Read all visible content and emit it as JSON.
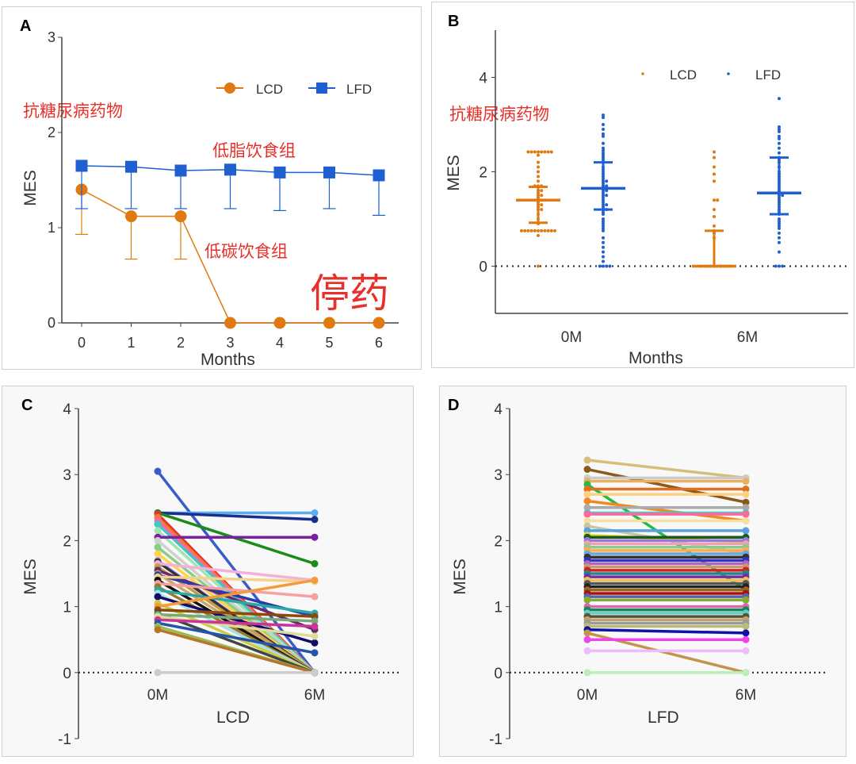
{
  "colors": {
    "lcd": "#e07a10",
    "lfd": "#1f5fd1",
    "annotation": "#e8302a",
    "axis": "#333333"
  },
  "chart_data": [
    {
      "panel": "A",
      "type": "line",
      "panel_label": "A",
      "xlabel": "Months",
      "ylabel": "MES",
      "x": [
        0,
        1,
        2,
        3,
        4,
        5,
        6
      ],
      "xlim": [
        -0.4,
        6.4
      ],
      "ylim": [
        0,
        3
      ],
      "yticks": [
        0,
        1,
        2,
        3
      ],
      "legend_position": "top-right",
      "series": [
        {
          "name": "LCD",
          "color": "#e07a10",
          "marker": "circle",
          "values": [
            1.4,
            1.12,
            1.12,
            0,
            0,
            0,
            0
          ],
          "err": [
            0.47,
            0.45,
            0.45,
            0,
            0,
            0,
            0
          ]
        },
        {
          "name": "LFD",
          "color": "#1f5fd1",
          "marker": "square",
          "values": [
            1.65,
            1.64,
            1.6,
            1.61,
            1.58,
            1.58,
            1.55
          ],
          "err": [
            0.45,
            0.44,
            0.4,
            0.41,
            0.4,
            0.38,
            0.42
          ]
        }
      ],
      "annotations": [
        "抗糖尿病药物",
        "低脂饮食组",
        "低碳饮食组",
        "停药"
      ]
    },
    {
      "panel": "B",
      "type": "scatter",
      "panel_label": "B",
      "xlabel": "Months",
      "ylabel": "MES",
      "categories": [
        "0M",
        "6M"
      ],
      "ylim": [
        -1,
        5
      ],
      "yticks": [
        0,
        2,
        4
      ],
      "legend_position": "top-right",
      "groups": [
        {
          "name": "LCD",
          "color": "#e07a10",
          "category": "0M",
          "mean": 1.4,
          "err_low": 0.92,
          "err_high": 1.68,
          "points": [
            2.42,
            2.42,
            2.42,
            2.42,
            2.42,
            2.42,
            2.42,
            2.42,
            2.35,
            2.2,
            2.1,
            2.0,
            1.9,
            1.8,
            1.7,
            1.7,
            1.7,
            1.6,
            1.6,
            1.55,
            1.5,
            1.5,
            1.45,
            1.4,
            1.4,
            1.4,
            1.4,
            1.35,
            1.3,
            1.3,
            1.25,
            1.2,
            1.2,
            1.1,
            1.0,
            0.9,
            0.75,
            0.75,
            0.75,
            0.75,
            0.75,
            0.75,
            0.75,
            0.75,
            0.75,
            0.75,
            0.75,
            0.65,
            0.0
          ]
        },
        {
          "name": "LFD",
          "color": "#1f5fd1",
          "category": "0M",
          "mean": 1.65,
          "err_low": 1.2,
          "err_high": 2.2,
          "points": [
            3.2,
            3.15,
            3.0,
            2.9,
            2.8,
            2.75,
            2.6,
            2.5,
            2.45,
            2.4,
            2.35,
            2.3,
            2.25,
            2.2,
            2.1,
            2.05,
            2.0,
            1.95,
            1.9,
            1.85,
            1.8,
            1.8,
            1.75,
            1.7,
            1.7,
            1.65,
            1.6,
            1.6,
            1.55,
            1.5,
            1.5,
            1.45,
            1.4,
            1.35,
            1.3,
            1.3,
            1.25,
            1.2,
            1.2,
            1.15,
            1.1,
            1.0,
            0.95,
            0.9,
            0.85,
            0.8,
            0.75,
            0.6,
            0.5,
            0.4,
            0.3,
            0.2,
            0.1,
            0.0,
            0.0,
            0.0,
            0.0
          ]
        },
        {
          "name": "LCD",
          "color": "#e07a10",
          "category": "6M",
          "mean": 0.0,
          "err_low": 0.0,
          "err_high": 0.75,
          "points": [
            2.42,
            2.3,
            2.1,
            1.95,
            1.8,
            1.4,
            1.4,
            1.2,
            1.05,
            0.85,
            0.75,
            0.7,
            0.6,
            0.0,
            0.0,
            0.0,
            0.0,
            0.0,
            0.0,
            0.0,
            0.0,
            0.0,
            0.0
          ]
        },
        {
          "name": "LFD",
          "color": "#1f5fd1",
          "category": "6M",
          "mean": 1.55,
          "err_low": 1.1,
          "err_high": 2.3,
          "points": [
            3.55,
            2.95,
            2.9,
            2.85,
            2.75,
            2.7,
            2.6,
            2.5,
            2.4,
            2.3,
            2.25,
            2.2,
            2.1,
            2.0,
            1.95,
            1.9,
            1.85,
            1.8,
            1.75,
            1.7,
            1.65,
            1.6,
            1.55,
            1.5,
            1.5,
            1.45,
            1.4,
            1.35,
            1.3,
            1.25,
            1.2,
            1.15,
            1.1,
            1.0,
            0.95,
            0.9,
            0.85,
            0.8,
            0.7,
            0.6,
            0.5,
            0.3,
            0.0,
            0.0,
            0.0
          ]
        }
      ],
      "annotations": [
        "抗糖尿病药物"
      ]
    },
    {
      "panel": "C",
      "type": "line",
      "panel_label": "C",
      "xlabel": "LCD",
      "ylabel": "MES",
      "categories": [
        "0M",
        "6M"
      ],
      "ylim": [
        -1,
        4
      ],
      "yticks": [
        -1,
        0,
        1,
        2,
        3,
        4
      ],
      "pairs": [
        [
          3.05,
          0.0,
          "#3a5cc8"
        ],
        [
          2.42,
          2.42,
          "#5aaef0"
        ],
        [
          2.42,
          2.32,
          "#1a2f8c"
        ],
        [
          2.42,
          1.65,
          "#1a8c1a"
        ],
        [
          2.4,
          0.0,
          "#e33434"
        ],
        [
          2.35,
          0.0,
          "#f07e27"
        ],
        [
          2.3,
          0.0,
          "#ff66aa"
        ],
        [
          2.25,
          0.0,
          "#44c4c4"
        ],
        [
          2.15,
          0.0,
          "#9ee6b0"
        ],
        [
          2.05,
          2.05,
          "#7a1fa2"
        ],
        [
          2.0,
          0.0,
          "#d0d0d0"
        ],
        [
          1.9,
          0.0,
          "#86cf86"
        ],
        [
          1.8,
          0.0,
          "#ffd24a"
        ],
        [
          1.7,
          0.0,
          "#b8a0ff"
        ],
        [
          1.68,
          0.0,
          "#333333"
        ],
        [
          1.65,
          1.4,
          "#f5b0d8"
        ],
        [
          1.6,
          0.0,
          "#c49a4a"
        ],
        [
          1.55,
          0.65,
          "#6a2a6a"
        ],
        [
          1.5,
          0.0,
          "#caa86a"
        ],
        [
          1.48,
          0.85,
          "#2a3aa8"
        ],
        [
          1.45,
          1.38,
          "#f4d28a"
        ],
        [
          1.4,
          0.0,
          "#111111"
        ],
        [
          1.35,
          1.15,
          "#f7a0a0"
        ],
        [
          1.3,
          0.0,
          "#9a7a2a"
        ],
        [
          1.25,
          0.9,
          "#2aa8a8"
        ],
        [
          1.2,
          0.0,
          "#a8e0e8"
        ],
        [
          1.15,
          0.45,
          "#140a6a"
        ],
        [
          1.05,
          0.0,
          "#cccc44"
        ],
        [
          1.0,
          1.4,
          "#f59a3a"
        ],
        [
          0.95,
          0.85,
          "#8a4a0a"
        ],
        [
          0.9,
          0.0,
          "#444444"
        ],
        [
          0.88,
          0.78,
          "#77aa77"
        ],
        [
          0.85,
          0.55,
          "#dddd99"
        ],
        [
          0.8,
          0.7,
          "#cc3399"
        ],
        [
          0.75,
          0.3,
          "#2255aa"
        ],
        [
          0.7,
          0.0,
          "#99bb55"
        ],
        [
          0.65,
          0.0,
          "#b8742a"
        ],
        [
          0.0,
          0.0,
          "#cccccc"
        ]
      ]
    },
    {
      "panel": "D",
      "type": "line",
      "panel_label": "D",
      "xlabel": "LFD",
      "ylabel": "MES",
      "categories": [
        "0M",
        "6M"
      ],
      "ylim": [
        -1,
        4
      ],
      "yticks": [
        -1,
        0,
        1,
        2,
        3,
        4
      ],
      "pairs": [
        [
          3.22,
          2.95,
          "#d4c07a"
        ],
        [
          3.08,
          2.58,
          "#8a5a1a"
        ],
        [
          2.95,
          2.95,
          "#cccccc"
        ],
        [
          2.9,
          2.9,
          "#e8b060"
        ],
        [
          2.85,
          1.25,
          "#22bb44"
        ],
        [
          2.78,
          2.78,
          "#e07020"
        ],
        [
          2.7,
          2.7,
          "#ffd080"
        ],
        [
          2.6,
          2.3,
          "#f08a20"
        ],
        [
          2.5,
          2.5,
          "#aaaaaa"
        ],
        [
          2.42,
          2.42,
          "#44cccc"
        ],
        [
          2.4,
          2.4,
          "#ff6699"
        ],
        [
          2.3,
          2.3,
          "#f6e0a0"
        ],
        [
          2.22,
          1.8,
          "#c8c8a0"
        ],
        [
          2.15,
          2.15,
          "#5aa0e0"
        ],
        [
          2.08,
          1.98,
          "#dddd22"
        ],
        [
          2.05,
          2.05,
          "#1a5a1a"
        ],
        [
          2.0,
          2.0,
          "#9977dd"
        ],
        [
          1.95,
          1.95,
          "#f0a0b0"
        ],
        [
          1.9,
          1.9,
          "#88cc88"
        ],
        [
          1.85,
          1.85,
          "#ffaa55"
        ],
        [
          1.8,
          1.8,
          "#66aadd"
        ],
        [
          1.75,
          1.75,
          "#333333"
        ],
        [
          1.7,
          1.7,
          "#3333bb"
        ],
        [
          1.65,
          1.65,
          "#aa66cc"
        ],
        [
          1.6,
          1.6,
          "#cc9966"
        ],
        [
          1.55,
          1.55,
          "#d62020"
        ],
        [
          1.5,
          1.5,
          "#1a8a8a"
        ],
        [
          1.45,
          1.45,
          "#7a2aa2"
        ],
        [
          1.4,
          1.4,
          "#f0c050"
        ],
        [
          1.35,
          1.35,
          "#555555"
        ],
        [
          1.3,
          1.3,
          "#222222"
        ],
        [
          1.25,
          1.25,
          "#996622"
        ],
        [
          1.2,
          1.2,
          "#aa1111"
        ],
        [
          1.15,
          1.15,
          "#5566aa"
        ],
        [
          1.1,
          1.1,
          "#88aa33"
        ],
        [
          1.0,
          1.0,
          "#dd66aa"
        ],
        [
          0.95,
          0.95,
          "#118855"
        ],
        [
          0.9,
          0.9,
          "#66cccc"
        ],
        [
          0.85,
          0.85,
          "#555533"
        ],
        [
          0.8,
          0.8,
          "#c0a070"
        ],
        [
          0.75,
          0.75,
          "#999999"
        ],
        [
          0.7,
          0.7,
          "#bbbb77"
        ],
        [
          0.65,
          0.6,
          "#1111aa"
        ],
        [
          0.6,
          0.0,
          "#c4934a"
        ],
        [
          0.5,
          0.5,
          "#ee44ee"
        ],
        [
          0.33,
          0.33,
          "#eebbff"
        ],
        [
          0.0,
          0.0,
          "#bbeebb"
        ]
      ]
    }
  ]
}
